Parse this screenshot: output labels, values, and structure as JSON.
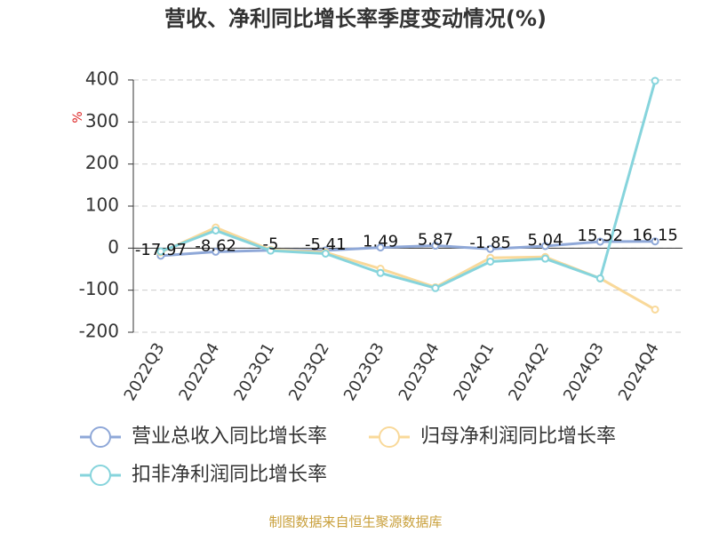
{
  "chart_data": {
    "type": "line",
    "title": "营收、净利同比增长率季度变动情况(%)",
    "y_label": "%",
    "categories": [
      "2022Q3",
      "2022Q4",
      "2023Q1",
      "2023Q2",
      "2023Q3",
      "2023Q4",
      "2024Q1",
      "2024Q2",
      "2024Q3",
      "2024Q4"
    ],
    "series": [
      {
        "name": "营业总收入同比增长率",
        "color": "#8fa8d8",
        "values": [
          -17.97,
          -8.62,
          -5,
          -5.41,
          1.49,
          5.87,
          -1.85,
          5.04,
          15.52,
          16.15
        ],
        "show_labels": true
      },
      {
        "name": "归母净利润同比增长率",
        "color": "#f9d99a",
        "values": [
          -10,
          49,
          -4,
          -10,
          -49,
          -93,
          -23,
          -21,
          -72,
          -146
        ],
        "show_labels": false
      },
      {
        "name": "扣非净利润同比增长率",
        "color": "#86d4dc",
        "values": [
          -8,
          42,
          -6,
          -13,
          -59,
          -95,
          -32,
          -25,
          -72,
          398
        ],
        "show_labels": false
      }
    ],
    "ylim": [
      -200,
      400
    ],
    "yticks": [
      -200,
      -100,
      0,
      100,
      200,
      300,
      400
    ],
    "grid": true,
    "source": "制图数据来自恒生聚源数据库"
  }
}
